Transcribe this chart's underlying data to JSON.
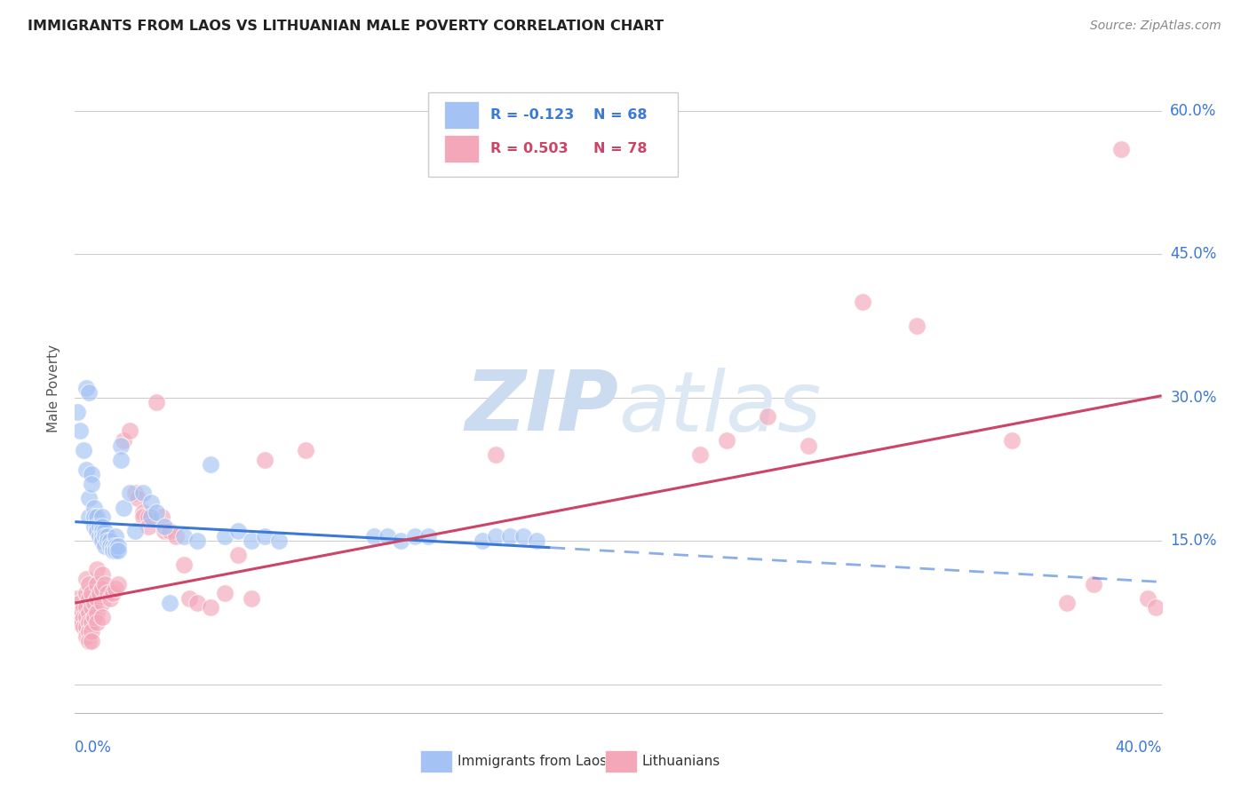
{
  "title": "IMMIGRANTS FROM LAOS VS LITHUANIAN MALE POVERTY CORRELATION CHART",
  "source": "Source: ZipAtlas.com",
  "ylabel": "Male Poverty",
  "yticks": [
    0.0,
    0.15,
    0.3,
    0.45,
    0.6
  ],
  "xmin": 0.0,
  "xmax": 0.4,
  "ymin": -0.03,
  "ymax": 0.65,
  "blue_color": "#a4c2f4",
  "pink_color": "#f4a7b9",
  "blue_line_color": "#3c78d8",
  "pink_line_color": "#cc4466",
  "blue_scatter": [
    [
      0.001,
      0.285
    ],
    [
      0.002,
      0.265
    ],
    [
      0.003,
      0.245
    ],
    [
      0.004,
      0.225
    ],
    [
      0.004,
      0.31
    ],
    [
      0.005,
      0.305
    ],
    [
      0.005,
      0.195
    ],
    [
      0.005,
      0.175
    ],
    [
      0.006,
      0.22
    ],
    [
      0.006,
      0.21
    ],
    [
      0.007,
      0.185
    ],
    [
      0.007,
      0.175
    ],
    [
      0.007,
      0.165
    ],
    [
      0.008,
      0.175
    ],
    [
      0.008,
      0.165
    ],
    [
      0.008,
      0.16
    ],
    [
      0.009,
      0.165
    ],
    [
      0.009,
      0.155
    ],
    [
      0.01,
      0.175
    ],
    [
      0.01,
      0.165
    ],
    [
      0.01,
      0.16
    ],
    [
      0.01,
      0.155
    ],
    [
      0.01,
      0.15
    ],
    [
      0.011,
      0.16
    ],
    [
      0.011,
      0.155
    ],
    [
      0.011,
      0.145
    ],
    [
      0.012,
      0.155
    ],
    [
      0.012,
      0.15
    ],
    [
      0.013,
      0.15
    ],
    [
      0.013,
      0.145
    ],
    [
      0.014,
      0.145
    ],
    [
      0.014,
      0.14
    ],
    [
      0.015,
      0.155
    ],
    [
      0.015,
      0.145
    ],
    [
      0.015,
      0.14
    ],
    [
      0.016,
      0.145
    ],
    [
      0.016,
      0.14
    ],
    [
      0.017,
      0.25
    ],
    [
      0.017,
      0.235
    ],
    [
      0.018,
      0.185
    ],
    [
      0.02,
      0.2
    ],
    [
      0.022,
      0.16
    ],
    [
      0.025,
      0.2
    ],
    [
      0.028,
      0.19
    ],
    [
      0.028,
      0.175
    ],
    [
      0.03,
      0.18
    ],
    [
      0.033,
      0.165
    ],
    [
      0.035,
      0.085
    ],
    [
      0.04,
      0.155
    ],
    [
      0.045,
      0.15
    ],
    [
      0.05,
      0.23
    ],
    [
      0.055,
      0.155
    ],
    [
      0.06,
      0.16
    ],
    [
      0.065,
      0.15
    ],
    [
      0.07,
      0.155
    ],
    [
      0.075,
      0.15
    ],
    [
      0.11,
      0.155
    ],
    [
      0.115,
      0.155
    ],
    [
      0.12,
      0.15
    ],
    [
      0.125,
      0.155
    ],
    [
      0.13,
      0.155
    ],
    [
      0.15,
      0.15
    ],
    [
      0.155,
      0.155
    ],
    [
      0.16,
      0.155
    ],
    [
      0.165,
      0.155
    ],
    [
      0.17,
      0.15
    ]
  ],
  "pink_scatter": [
    [
      0.001,
      0.09
    ],
    [
      0.001,
      0.075
    ],
    [
      0.001,
      0.065
    ],
    [
      0.002,
      0.085
    ],
    [
      0.002,
      0.075
    ],
    [
      0.002,
      0.065
    ],
    [
      0.003,
      0.08
    ],
    [
      0.003,
      0.07
    ],
    [
      0.003,
      0.06
    ],
    [
      0.004,
      0.11
    ],
    [
      0.004,
      0.095
    ],
    [
      0.004,
      0.08
    ],
    [
      0.004,
      0.07
    ],
    [
      0.004,
      0.06
    ],
    [
      0.004,
      0.05
    ],
    [
      0.005,
      0.105
    ],
    [
      0.005,
      0.09
    ],
    [
      0.005,
      0.075
    ],
    [
      0.005,
      0.065
    ],
    [
      0.005,
      0.055
    ],
    [
      0.005,
      0.045
    ],
    [
      0.006,
      0.095
    ],
    [
      0.006,
      0.08
    ],
    [
      0.006,
      0.065
    ],
    [
      0.006,
      0.055
    ],
    [
      0.006,
      0.045
    ],
    [
      0.007,
      0.085
    ],
    [
      0.007,
      0.07
    ],
    [
      0.008,
      0.12
    ],
    [
      0.008,
      0.105
    ],
    [
      0.008,
      0.09
    ],
    [
      0.008,
      0.075
    ],
    [
      0.008,
      0.065
    ],
    [
      0.009,
      0.095
    ],
    [
      0.01,
      0.115
    ],
    [
      0.01,
      0.1
    ],
    [
      0.01,
      0.085
    ],
    [
      0.01,
      0.07
    ],
    [
      0.011,
      0.105
    ],
    [
      0.012,
      0.095
    ],
    [
      0.013,
      0.09
    ],
    [
      0.014,
      0.095
    ],
    [
      0.015,
      0.1
    ],
    [
      0.016,
      0.105
    ],
    [
      0.018,
      0.255
    ],
    [
      0.02,
      0.265
    ],
    [
      0.022,
      0.2
    ],
    [
      0.023,
      0.195
    ],
    [
      0.025,
      0.18
    ],
    [
      0.025,
      0.175
    ],
    [
      0.027,
      0.175
    ],
    [
      0.027,
      0.165
    ],
    [
      0.03,
      0.295
    ],
    [
      0.032,
      0.175
    ],
    [
      0.033,
      0.16
    ],
    [
      0.035,
      0.16
    ],
    [
      0.037,
      0.155
    ],
    [
      0.04,
      0.125
    ],
    [
      0.042,
      0.09
    ],
    [
      0.045,
      0.085
    ],
    [
      0.05,
      0.08
    ],
    [
      0.055,
      0.095
    ],
    [
      0.06,
      0.135
    ],
    [
      0.065,
      0.09
    ],
    [
      0.07,
      0.235
    ],
    [
      0.085,
      0.245
    ],
    [
      0.155,
      0.24
    ],
    [
      0.23,
      0.24
    ],
    [
      0.24,
      0.255
    ],
    [
      0.255,
      0.28
    ],
    [
      0.27,
      0.25
    ],
    [
      0.29,
      0.4
    ],
    [
      0.31,
      0.375
    ],
    [
      0.345,
      0.255
    ],
    [
      0.365,
      0.085
    ],
    [
      0.375,
      0.105
    ],
    [
      0.385,
      0.56
    ],
    [
      0.395,
      0.09
    ],
    [
      0.398,
      0.08
    ]
  ],
  "blue_line_solid": {
    "x0": 0.0,
    "y0": 0.17,
    "x1": 0.175,
    "y1": 0.143
  },
  "blue_line_dashed": {
    "x0": 0.175,
    "y0": 0.143,
    "x1": 0.4,
    "y1": 0.107
  },
  "pink_line": {
    "x0": 0.0,
    "y0": 0.085,
    "x1": 0.4,
    "y1": 0.302
  },
  "watermark_zip": "ZIP",
  "watermark_atlas": "atlas",
  "watermark_color": "#ccdcf0",
  "background_color": "#ffffff"
}
